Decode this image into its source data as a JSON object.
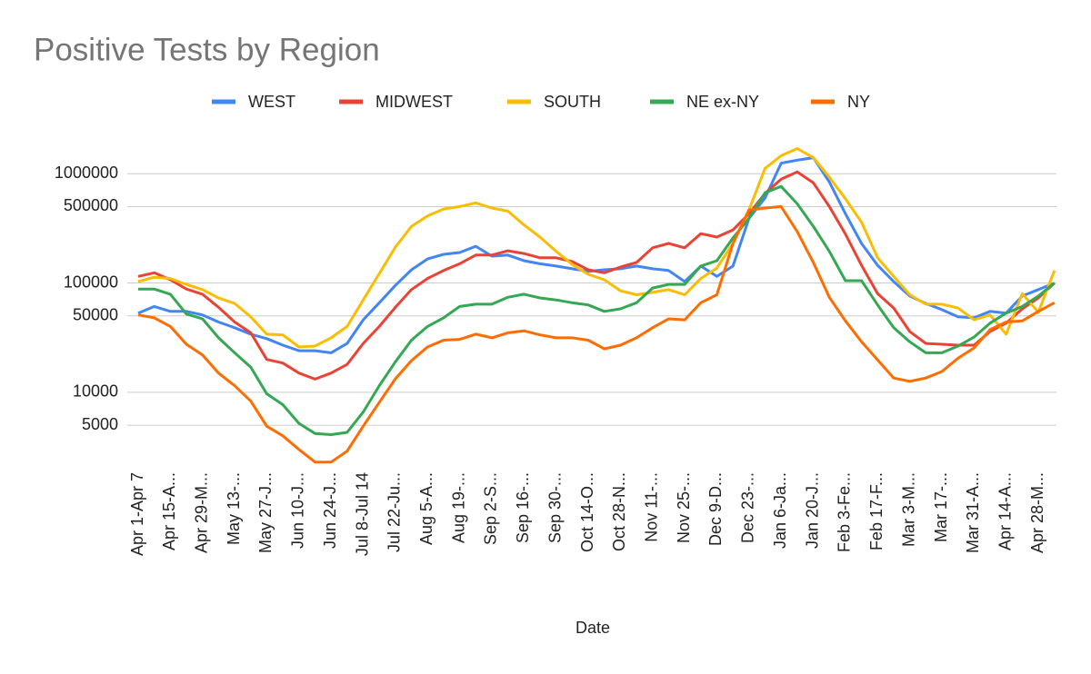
{
  "chart_data": {
    "type": "line",
    "title": "Positive Tests by Region",
    "x_label": "Date",
    "yscale": "log",
    "grid": true,
    "legend": "top",
    "ylim": [
      2000,
      2000000
    ],
    "yticks": [
      5000,
      10000,
      50000,
      100000,
      500000,
      1000000
    ],
    "categories": [
      "Apr 1-Apr 7",
      null,
      "Apr 15-A...",
      null,
      "Apr 29-M...",
      null,
      "May 13-...",
      null,
      "May 27-J...",
      null,
      "Jun 10-J...",
      null,
      "Jun 24-J...",
      null,
      "Jul 8-Jul 14",
      null,
      "Jul 22-Ju...",
      null,
      "Aug 5-A...",
      null,
      "Aug 19-...",
      null,
      "Sep 2-S...",
      null,
      "Sep 16-...",
      null,
      "Sep 30-...",
      null,
      "Oct 14-O...",
      null,
      "Oct 28-N...",
      null,
      "Nov 11-...",
      null,
      "Nov 25-...",
      null,
      "Dec 9-D...",
      null,
      "Dec 23-...",
      null,
      "Jan 6-Ja...",
      null,
      "Jan 20-J...",
      null,
      "Feb 3-Fe...",
      null,
      "Feb 17-F...",
      null,
      "Mar 3-M...",
      null,
      "Mar 17-...",
      null,
      "Mar 31-A...",
      null,
      "Apr 14-A...",
      null,
      "Apr 28-M...",
      null
    ],
    "series": [
      {
        "name": "WEST",
        "color": "#4285f4",
        "values": [
          53000,
          61000,
          55000,
          55000,
          51000,
          44000,
          39000,
          34000,
          31000,
          27000,
          24000,
          24000,
          23000,
          28000,
          46000,
          66000,
          95000,
          132000,
          166000,
          183000,
          190000,
          217000,
          176000,
          180000,
          160000,
          150000,
          143000,
          135000,
          128000,
          132000,
          135000,
          143000,
          135000,
          130000,
          103000,
          143000,
          115000,
          143000,
          390000,
          600000,
          1250000,
          1330000,
          1400000,
          840000,
          430000,
          230000,
          145000,
          103000,
          76000,
          65000,
          57000,
          49000,
          48000,
          55000,
          53000,
          76000,
          87000,
          100000
        ]
      },
      {
        "name": "MIDWEST",
        "color": "#ea4335",
        "values": [
          115000,
          124000,
          107000,
          88000,
          79000,
          60000,
          44000,
          35000,
          20000,
          18500,
          15000,
          13200,
          15000,
          18000,
          28000,
          40000,
          60000,
          87000,
          110000,
          130000,
          150000,
          180000,
          180000,
          197000,
          186000,
          170000,
          170000,
          157000,
          132000,
          124000,
          140000,
          154000,
          210000,
          230000,
          210000,
          283000,
          263000,
          306000,
          430000,
          660000,
          890000,
          1040000,
          825000,
          500000,
          280000,
          145000,
          80000,
          59000,
          36000,
          28000,
          27500,
          27000,
          27000,
          36000,
          43000,
          58000,
          73000,
          100000
        ]
      },
      {
        "name": "SOUTH",
        "color": "#fbbc04",
        "values": [
          103000,
          113000,
          110000,
          97000,
          87000,
          73000,
          65000,
          49000,
          34000,
          33500,
          26000,
          26500,
          31500,
          40000,
          70000,
          122000,
          213000,
          330000,
          410000,
          475000,
          500000,
          540000,
          485000,
          455000,
          340000,
          263000,
          195000,
          148000,
          120000,
          107000,
          85000,
          78000,
          82000,
          87000,
          78000,
          110000,
          137000,
          230000,
          465000,
          1120000,
          1460000,
          1700000,
          1400000,
          930000,
          590000,
          360000,
          170000,
          115000,
          78000,
          64000,
          64000,
          59000,
          46000,
          51000,
          34000,
          80000,
          54000,
          130000
        ]
      },
      {
        "name": "NE ex-NY",
        "color": "#34a853",
        "values": [
          88000,
          88000,
          79000,
          52000,
          47000,
          31500,
          23000,
          17000,
          9700,
          7700,
          5200,
          4200,
          4100,
          4300,
          6600,
          11500,
          19000,
          30000,
          40000,
          48000,
          61000,
          64000,
          64000,
          74000,
          79000,
          73000,
          70000,
          66000,
          63000,
          55000,
          58000,
          66000,
          90000,
          97000,
          97000,
          143000,
          160000,
          258000,
          390000,
          670000,
          765000,
          530000,
          330000,
          195000,
          105000,
          105000,
          63000,
          39000,
          29000,
          23000,
          23000,
          26500,
          32000,
          43000,
          53000,
          61000,
          76000,
          100000
        ]
      },
      {
        "name": "NY",
        "color": "#ff6d01",
        "values": [
          51000,
          48000,
          40000,
          27500,
          22000,
          15000,
          11500,
          8300,
          4900,
          4000,
          3000,
          2300,
          2300,
          2900,
          4900,
          8100,
          13300,
          19500,
          26000,
          30000,
          30500,
          34000,
          31500,
          35000,
          36500,
          33500,
          31500,
          31500,
          30000,
          25000,
          27000,
          31500,
          39000,
          47000,
          46000,
          66000,
          78000,
          230000,
          465000,
          485000,
          500000,
          295000,
          154000,
          74000,
          45000,
          29000,
          19800,
          13500,
          12600,
          13500,
          15500,
          20500,
          25500,
          37500,
          44000,
          45000,
          55000,
          66000
        ]
      }
    ]
  }
}
